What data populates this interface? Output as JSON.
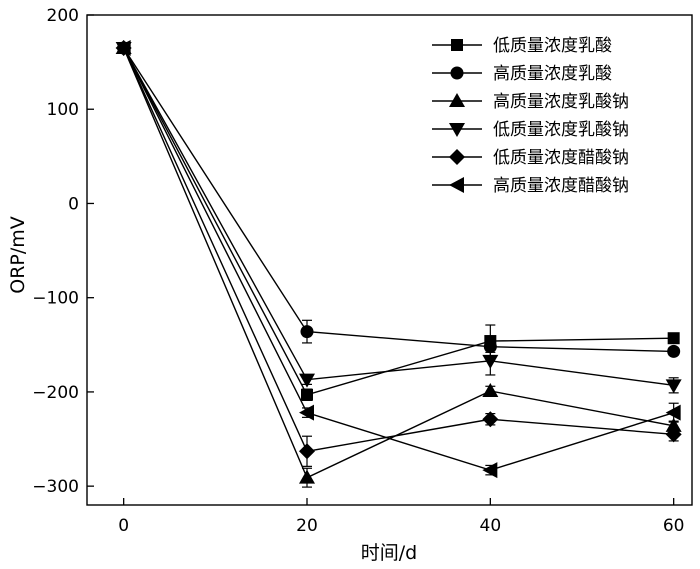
{
  "chart_data": {
    "type": "line",
    "xlabel": "时间/d",
    "ylabel": "ORP/mV",
    "xlim": [
      -4,
      62
    ],
    "ylim": [
      -320,
      200
    ],
    "xticks": [
      0,
      20,
      40,
      60
    ],
    "yticks": [
      200,
      100,
      0,
      -100,
      -200,
      -300
    ],
    "ytick_labels": [
      "200",
      "100",
      "0",
      "−100",
      "−200",
      "−300"
    ],
    "grid": false,
    "legend_position": "top-right",
    "x": [
      0,
      20,
      40,
      60
    ],
    "series": [
      {
        "name": "低质量浓度乳酸",
        "marker": "square",
        "values": [
          165,
          -203,
          -146,
          -143
        ],
        "errors": [
          3,
          6,
          17,
          4
        ]
      },
      {
        "name": "高质量浓度乳酸",
        "marker": "circle",
        "values": [
          165,
          -136,
          -152,
          -157
        ],
        "errors": [
          3,
          12,
          6,
          4
        ]
      },
      {
        "name": "高质量浓度乳酸钠",
        "marker": "triangle-up",
        "values": [
          165,
          -291,
          -199,
          -236
        ],
        "errors": [
          3,
          10,
          5,
          5
        ]
      },
      {
        "name": "低质量浓度乳酸钠",
        "marker": "triangle-down",
        "values": [
          165,
          -187,
          -167,
          -193
        ],
        "errors": [
          3,
          5,
          15,
          8
        ]
      },
      {
        "name": "低质量浓度醋酸钠",
        "marker": "diamond",
        "values": [
          165,
          -263,
          -229,
          -245
        ],
        "errors": [
          3,
          16,
          6,
          7
        ]
      },
      {
        "name": "高质量浓度醋酸钠",
        "marker": "triangle-left",
        "values": [
          165,
          -222,
          -283,
          -222
        ],
        "errors": [
          3,
          5,
          5,
          10
        ]
      }
    ]
  }
}
